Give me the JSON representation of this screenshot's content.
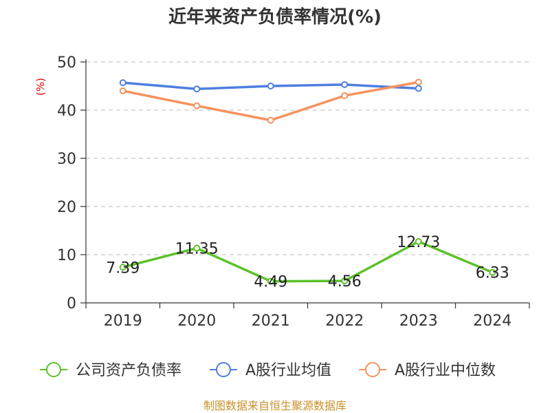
{
  "chart_data": {
    "type": "line",
    "title": "近年来资产负债率情况(%)",
    "ylabel": "(%)",
    "categories": [
      "2019",
      "2020",
      "2021",
      "2022",
      "2023",
      "2024"
    ],
    "ylim": [
      0,
      50
    ],
    "yticks": [
      "0",
      "10",
      "20",
      "30",
      "40",
      "50"
    ],
    "grid": true,
    "legend_position": "bottom",
    "series": [
      {
        "name": "公司资产负债率",
        "color": "#5cc12a",
        "values": [
          7.39,
          11.35,
          4.49,
          4.56,
          12.73,
          6.33
        ],
        "labels": [
          "7.39",
          "11.35",
          "4.49",
          "4.56",
          "12.73",
          "6.33"
        ]
      },
      {
        "name": "A股行业均值",
        "color": "#4e7fde",
        "values": [
          45.7,
          44.4,
          45.0,
          45.3,
          44.5,
          null
        ]
      },
      {
        "name": "A股行业中位数",
        "color": "#f5925e",
        "values": [
          44.0,
          40.9,
          37.9,
          43.0,
          45.8,
          null
        ]
      }
    ]
  },
  "source": "制图数据来自恒生聚源数据库"
}
